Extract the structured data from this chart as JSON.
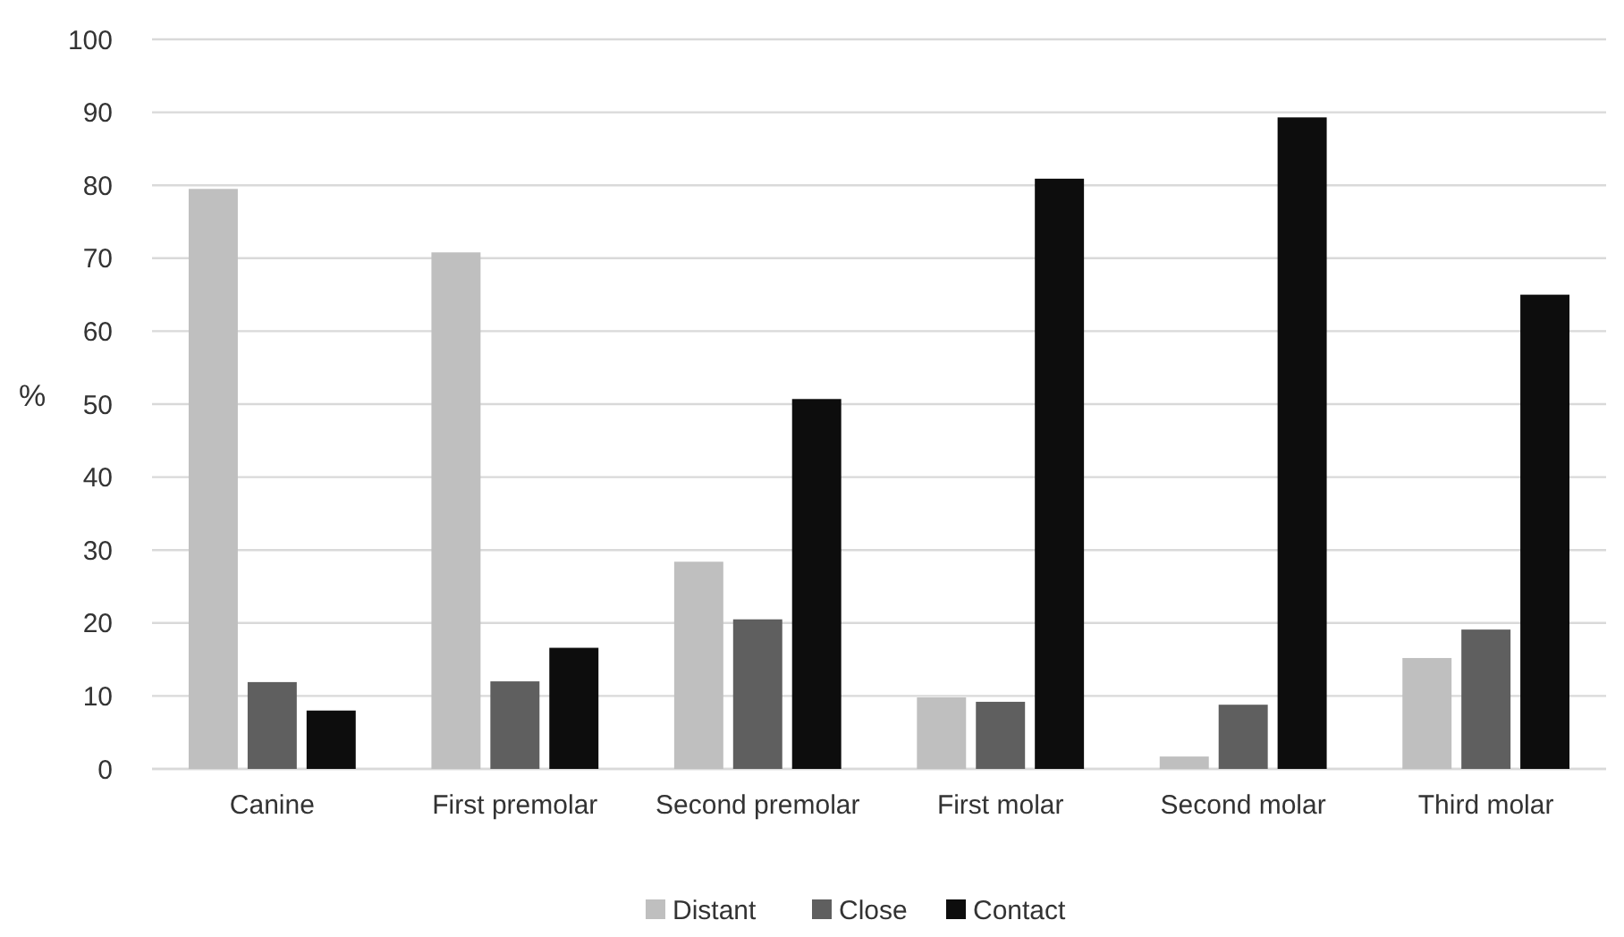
{
  "chart_data": {
    "type": "bar",
    "ylabel": "%",
    "categories": [
      "Canine",
      "First premolar",
      "Second premolar",
      "First molar",
      "Second molar",
      "Third molar"
    ],
    "series": [
      {
        "name": "Distant",
        "color": "#bfbfbf",
        "values": [
          79.5,
          70.8,
          28.4,
          9.8,
          1.7,
          15.2
        ]
      },
      {
        "name": "Close",
        "color": "#5f5f5f",
        "values": [
          11.9,
          12,
          20.5,
          9.2,
          8.8,
          19.1
        ]
      },
      {
        "name": "Contact",
        "color": "#0d0d0d",
        "values": [
          8,
          16.6,
          50.7,
          80.9,
          89.3,
          65
        ]
      }
    ],
    "ylim": [
      0,
      100
    ],
    "yticks": [
      0,
      10,
      20,
      30,
      40,
      50,
      60,
      70,
      80,
      90,
      100
    ],
    "grid": "y",
    "legend": "bottom"
  }
}
